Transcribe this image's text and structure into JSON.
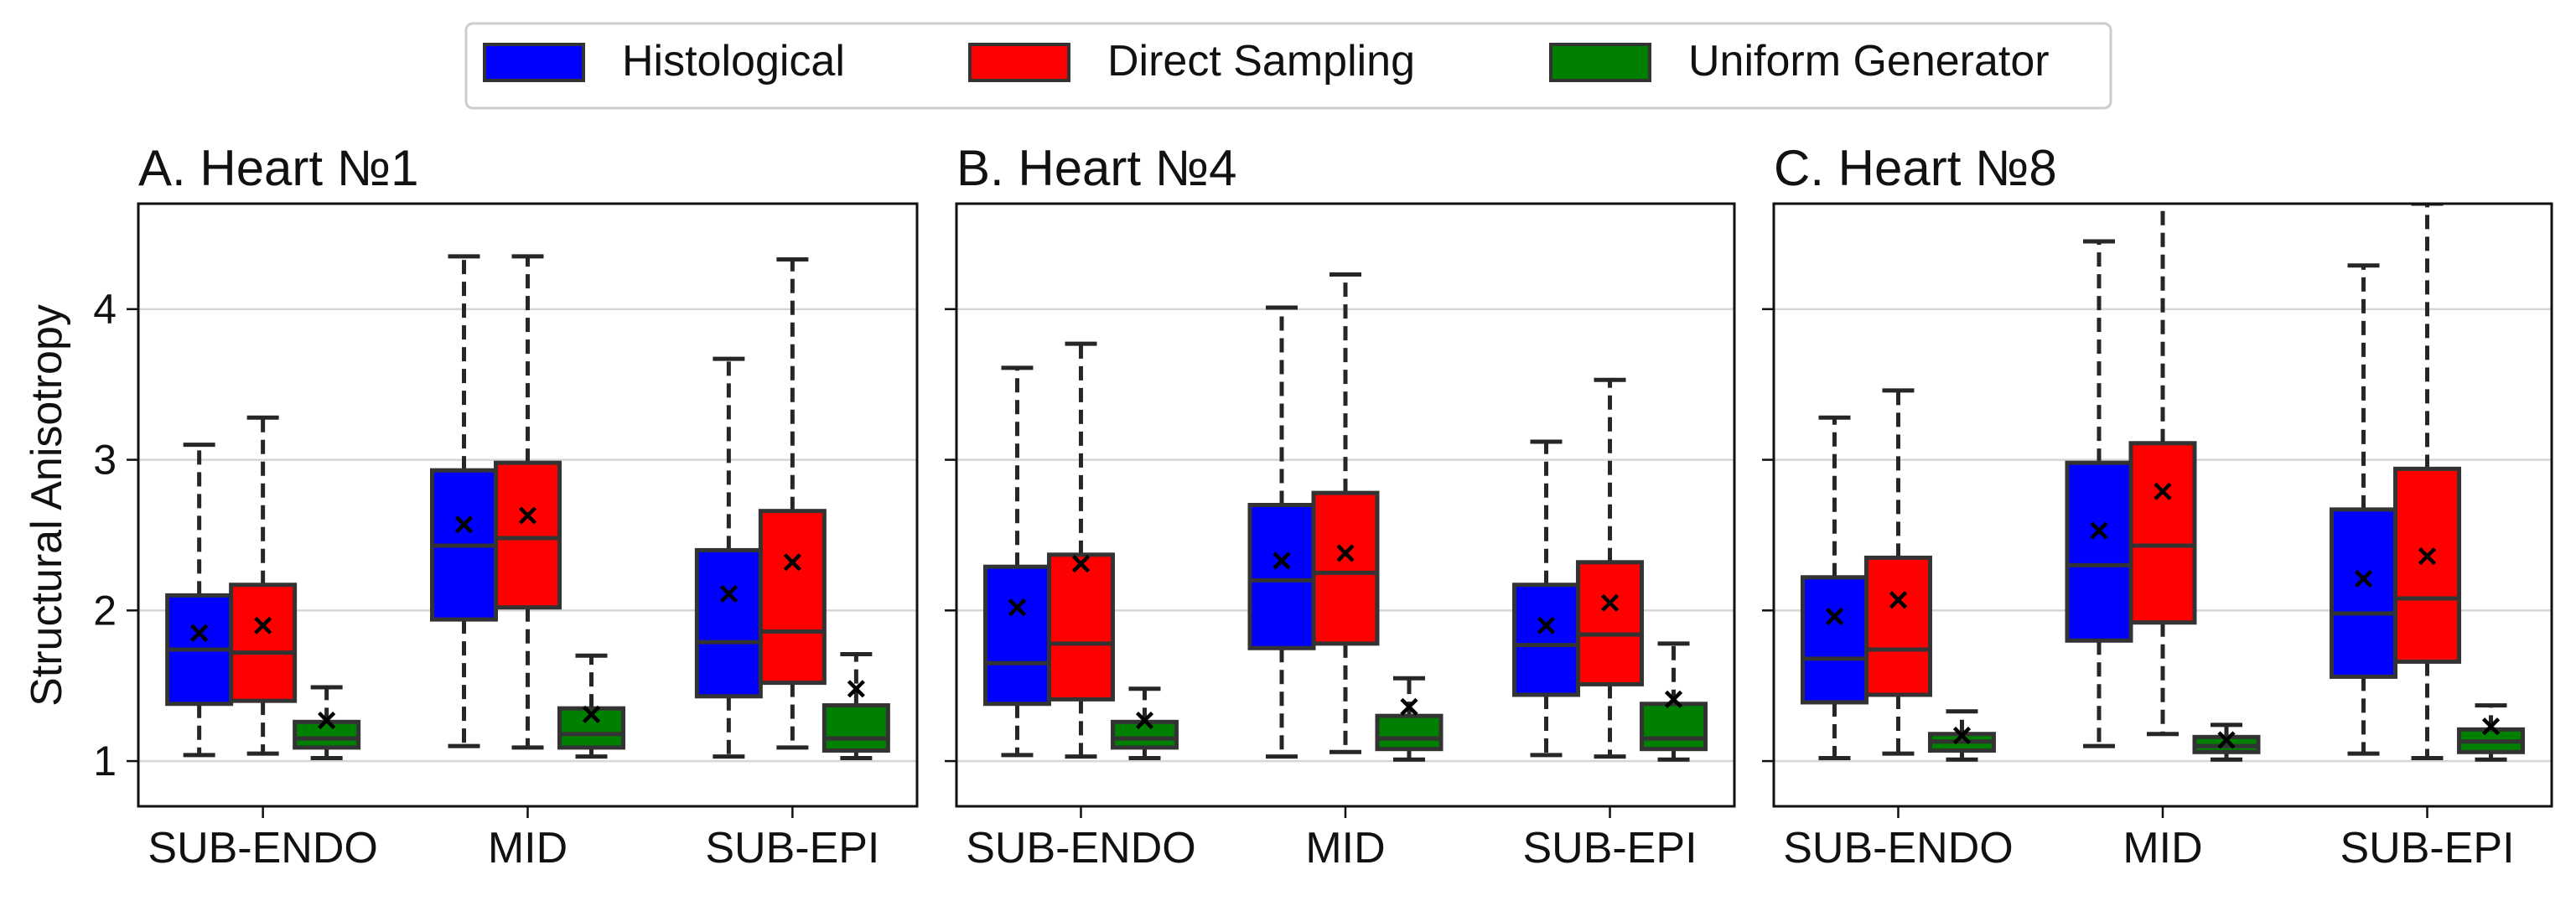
{
  "legend": {
    "placement": "top-center",
    "items": [
      {
        "label": "Histological",
        "color": "#0000ff"
      },
      {
        "label": "Direct Sampling",
        "color": "#ff0000"
      },
      {
        "label": "Uniform Generator",
        "color": "#008000"
      }
    ]
  },
  "ylabel": "Structural Anisotropy",
  "y_ticks": [
    "1",
    "2",
    "3",
    "4"
  ],
  "chart_data": [
    {
      "type": "box",
      "title": "A. Heart №1",
      "categories": [
        "SUB-ENDO",
        "MID",
        "SUB-EPI"
      ],
      "ylim": [
        0.7,
        4.7
      ],
      "grid": "horizontal",
      "series": [
        {
          "name": "Histological",
          "color": "#0000ff",
          "boxes": [
            {
              "whislo": 1.04,
              "q1": 1.38,
              "med": 1.74,
              "q3": 2.1,
              "whishi": 3.1,
              "mean": 1.85
            },
            {
              "whislo": 1.1,
              "q1": 1.94,
              "med": 2.43,
              "q3": 2.93,
              "whishi": 4.35,
              "mean": 2.57
            },
            {
              "whislo": 1.03,
              "q1": 1.43,
              "med": 1.79,
              "q3": 2.4,
              "whishi": 3.67,
              "mean": 2.11
            }
          ]
        },
        {
          "name": "Direct Sampling",
          "color": "#ff0000",
          "boxes": [
            {
              "whislo": 1.05,
              "q1": 1.4,
              "med": 1.72,
              "q3": 2.17,
              "whishi": 3.28,
              "mean": 1.9
            },
            {
              "whislo": 1.09,
              "q1": 2.02,
              "med": 2.48,
              "q3": 2.98,
              "whishi": 4.35,
              "mean": 2.63
            },
            {
              "whislo": 1.09,
              "q1": 1.52,
              "med": 1.86,
              "q3": 2.66,
              "whishi": 4.33,
              "mean": 2.32
            }
          ]
        },
        {
          "name": "Uniform Generator",
          "color": "#008000",
          "boxes": [
            {
              "whislo": 1.02,
              "q1": 1.09,
              "med": 1.15,
              "q3": 1.26,
              "whishi": 1.49,
              "mean": 1.27
            },
            {
              "whislo": 1.03,
              "q1": 1.09,
              "med": 1.18,
              "q3": 1.35,
              "whishi": 1.7,
              "mean": 1.31
            },
            {
              "whislo": 1.02,
              "q1": 1.07,
              "med": 1.15,
              "q3": 1.37,
              "whishi": 1.71,
              "mean": 1.48
            }
          ]
        }
      ]
    },
    {
      "type": "box",
      "title": "B. Heart №4",
      "categories": [
        "SUB-ENDO",
        "MID",
        "SUB-EPI"
      ],
      "ylim": [
        0.7,
        4.7
      ],
      "grid": "horizontal",
      "series": [
        {
          "name": "Histological",
          "color": "#0000ff",
          "boxes": [
            {
              "whislo": 1.04,
              "q1": 1.38,
              "med": 1.65,
              "q3": 2.29,
              "whishi": 3.61,
              "mean": 2.02
            },
            {
              "whislo": 1.03,
              "q1": 1.75,
              "med": 2.2,
              "q3": 2.7,
              "whishi": 4.01,
              "mean": 2.33
            },
            {
              "whislo": 1.04,
              "q1": 1.44,
              "med": 1.77,
              "q3": 2.17,
              "whishi": 3.12,
              "mean": 1.9
            }
          ]
        },
        {
          "name": "Direct Sampling",
          "color": "#ff0000",
          "boxes": [
            {
              "whislo": 1.03,
              "q1": 1.41,
              "med": 1.78,
              "q3": 2.37,
              "whishi": 3.77,
              "mean": 2.31
            },
            {
              "whislo": 1.06,
              "q1": 1.78,
              "med": 2.25,
              "q3": 2.78,
              "whishi": 4.23,
              "mean": 2.38
            },
            {
              "whislo": 1.03,
              "q1": 1.51,
              "med": 1.84,
              "q3": 2.32,
              "whishi": 3.53,
              "mean": 2.05
            }
          ]
        },
        {
          "name": "Uniform Generator",
          "color": "#008000",
          "boxes": [
            {
              "whislo": 1.02,
              "q1": 1.09,
              "med": 1.15,
              "q3": 1.26,
              "whishi": 1.48,
              "mean": 1.27
            },
            {
              "whislo": 1.01,
              "q1": 1.08,
              "med": 1.15,
              "q3": 1.3,
              "whishi": 1.55,
              "mean": 1.36
            },
            {
              "whislo": 1.01,
              "q1": 1.08,
              "med": 1.15,
              "q3": 1.38,
              "whishi": 1.78,
              "mean": 1.41
            }
          ]
        }
      ]
    },
    {
      "type": "box",
      "title": "C. Heart №8",
      "categories": [
        "SUB-ENDO",
        "MID",
        "SUB-EPI"
      ],
      "ylim": [
        0.7,
        4.7
      ],
      "grid": "horizontal",
      "series": [
        {
          "name": "Histological",
          "color": "#0000ff",
          "boxes": [
            {
              "whislo": 1.02,
              "q1": 1.39,
              "med": 1.68,
              "q3": 2.22,
              "whishi": 3.28,
              "mean": 1.96
            },
            {
              "whislo": 1.1,
              "q1": 1.8,
              "med": 2.3,
              "q3": 2.98,
              "whishi": 4.45,
              "mean": 2.53
            },
            {
              "whislo": 1.05,
              "q1": 1.56,
              "med": 1.98,
              "q3": 2.67,
              "whishi": 4.29,
              "mean": 2.21
            }
          ]
        },
        {
          "name": "Direct Sampling",
          "color": "#ff0000",
          "boxes": [
            {
              "whislo": 1.05,
              "q1": 1.44,
              "med": 1.74,
              "q3": 2.35,
              "whishi": 3.46,
              "mean": 2.07
            },
            {
              "whislo": 1.18,
              "q1": 1.92,
              "med": 2.43,
              "q3": 3.11,
              "whishi": 4.8,
              "mean": 2.79
            },
            {
              "whislo": 1.02,
              "q1": 1.66,
              "med": 2.08,
              "q3": 2.94,
              "whishi": 4.7,
              "mean": 2.36
            }
          ]
        },
        {
          "name": "Uniform Generator",
          "color": "#008000",
          "boxes": [
            {
              "whislo": 1.01,
              "q1": 1.07,
              "med": 1.13,
              "q3": 1.18,
              "whishi": 1.33,
              "mean": 1.17
            },
            {
              "whislo": 1.01,
              "q1": 1.06,
              "med": 1.1,
              "q3": 1.16,
              "whishi": 1.24,
              "mean": 1.14
            },
            {
              "whislo": 1.01,
              "q1": 1.06,
              "med": 1.13,
              "q3": 1.21,
              "whishi": 1.37,
              "mean": 1.23
            }
          ]
        }
      ]
    }
  ]
}
